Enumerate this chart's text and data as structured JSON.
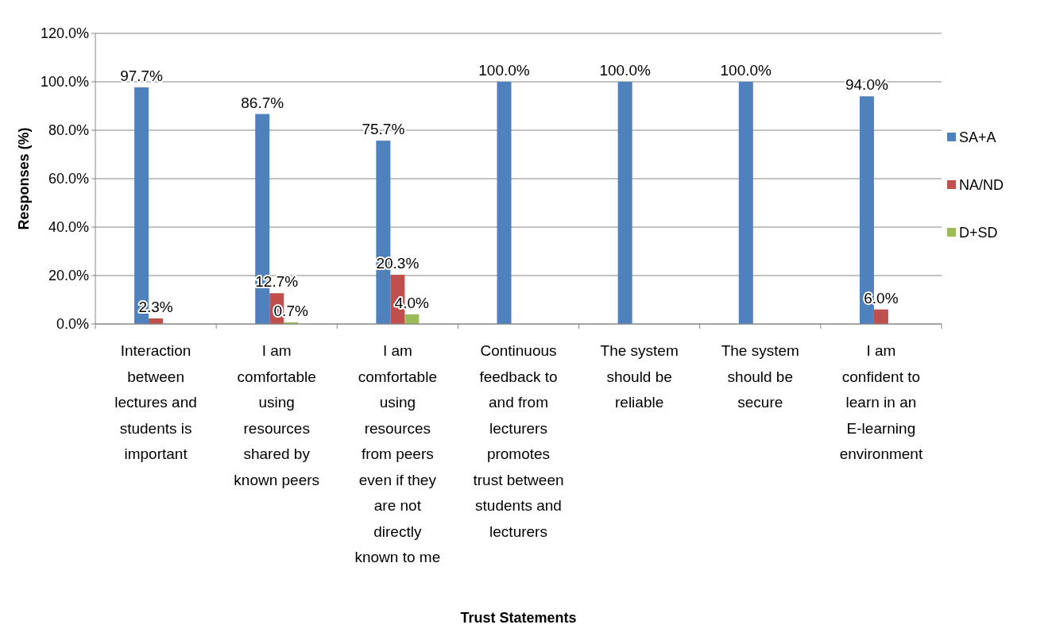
{
  "chart_data": {
    "type": "bar",
    "xlabel": "Trust Statements",
    "ylabel": "Responses (%)",
    "categories": [
      "Interaction between lectures and students is important",
      "I am comfortable using resources shared by known peers",
      "I am comfortable using resources from peers even if they are not directly known to me",
      "Continuous feedback to and from lecturers promotes trust between students and lecturers",
      "The system should be reliable",
      "The system should be secure",
      "I am confident to learn in an E-learning environment"
    ],
    "series": [
      {
        "name": "SA+A",
        "color": "#4f81bd",
        "values": [
          97.7,
          86.7,
          75.7,
          100,
          100,
          100,
          94
        ],
        "value_labels": [
          "97.7%",
          "86.7%",
          "75.7%",
          "100.0%",
          "100.0%",
          "100.0%",
          "94.0%"
        ]
      },
      {
        "name": "NA/ND",
        "color": "#c0504d",
        "values": [
          2.3,
          12.7,
          20.3,
          0,
          0,
          0,
          6
        ],
        "value_labels": [
          "2.3%",
          "12.7%",
          "20.3%",
          null,
          null,
          null,
          "6.0%"
        ]
      },
      {
        "name": "D+SD",
        "color": "#9bbb59",
        "values": [
          0,
          0.7,
          4,
          0,
          0,
          0,
          0
        ],
        "value_labels": [
          null,
          "0.7%",
          "4.0%",
          null,
          null,
          null,
          null
        ]
      }
    ],
    "ylim": [
      0,
      120
    ],
    "yticks": [
      {
        "value": 0,
        "label": "0.0%"
      },
      {
        "value": 20,
        "label": "20.0%"
      },
      {
        "value": 40,
        "label": "40.0%"
      },
      {
        "value": 60,
        "label": "60.0%"
      },
      {
        "value": 80,
        "label": "80.0%"
      },
      {
        "value": 100,
        "label": "100.0%"
      },
      {
        "value": 120,
        "label": "120.0%"
      }
    ],
    "grid": "y",
    "legend": "right"
  }
}
